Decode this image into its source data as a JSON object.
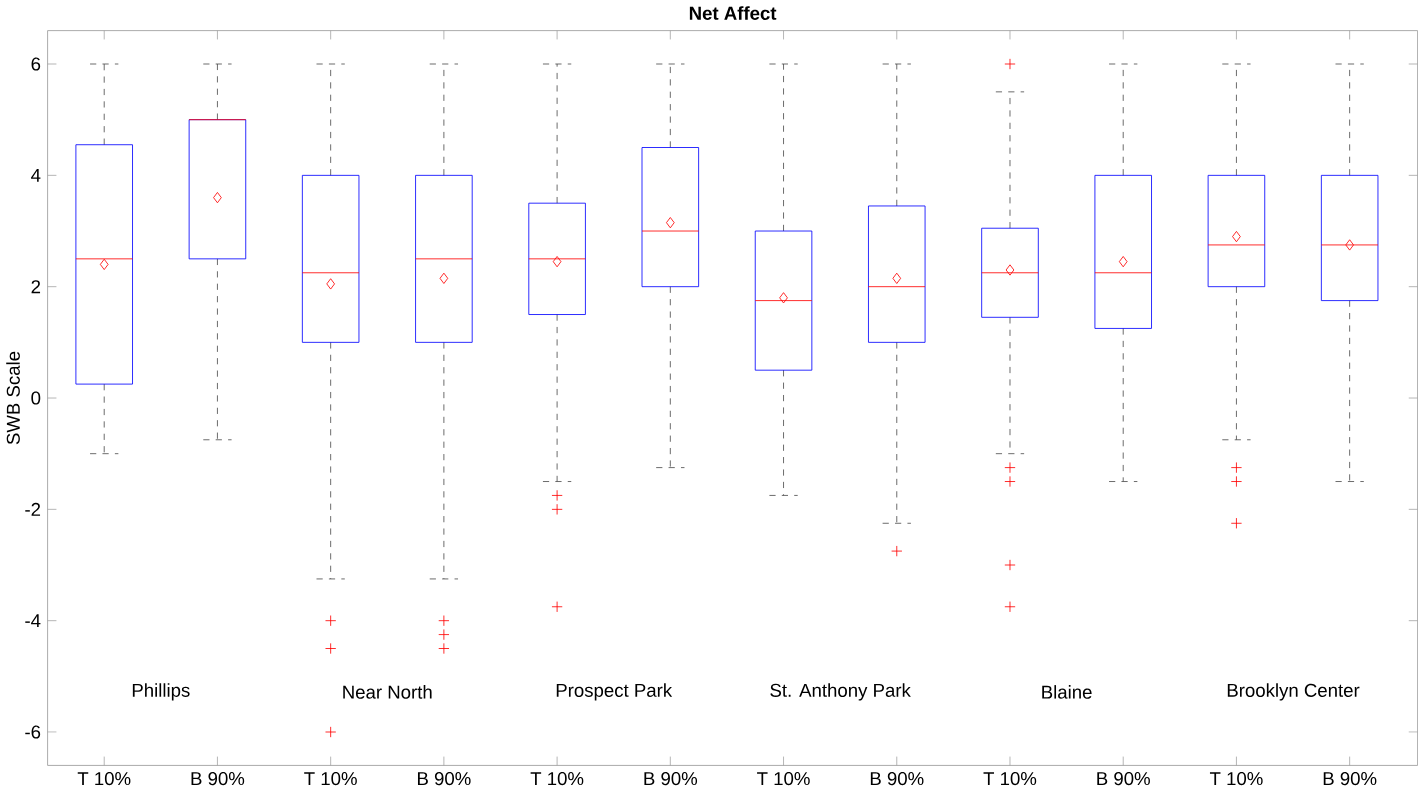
{
  "chart_data": {
    "type": "box",
    "title": "Net Affect",
    "ylabel": "SWB Scale",
    "categories": [
      "T 10%",
      "B 90%",
      "T 10%",
      "B 90%",
      "T 10%",
      "B 90%",
      "T 10%",
      "B 90%",
      "T 10%",
      "B 90%",
      "T 10%",
      "B 90%"
    ],
    "color": "#0000ff",
    "boxes": [
      {
        "low": -1,
        "q1": 0.25,
        "median": 2.5,
        "q3": 4.55,
        "high": 6,
        "mean": 2.4
      },
      {
        "low": -0.75,
        "q1": 2.5,
        "median": 5,
        "q3": 5,
        "high": 6,
        "mean": 3.6
      },
      {
        "low": -3.25,
        "q1": 1,
        "median": 2.25,
        "q3": 4,
        "high": 6,
        "mean": 2.05,
        "outliers": [
          -4,
          -4.5,
          -6
        ]
      },
      {
        "low": -3.25,
        "q1": 1,
        "median": 2.5,
        "q3": 4,
        "high": 6,
        "mean": 2.15,
        "outliers": [
          -4,
          -4.25,
          -4.5
        ]
      },
      {
        "low": -1.5,
        "q1": 1.5,
        "median": 2.5,
        "q3": 3.5,
        "high": 6,
        "mean": 2.45,
        "outliers": [
          -1.75,
          -2,
          -3.75
        ]
      },
      {
        "low": -1.25,
        "q1": 2,
        "median": 3,
        "q3": 4.5,
        "high": 6,
        "mean": 3.15
      },
      {
        "low": -1.75,
        "q1": 0.5,
        "median": 1.75,
        "q3": 3,
        "high": 6,
        "mean": 1.8
      },
      {
        "low": -2.25,
        "q1": 1,
        "median": 2,
        "q3": 3.45,
        "high": 6,
        "mean": 2.15,
        "outliers": [
          -2.75
        ]
      },
      {
        "low": -1,
        "q1": 1.45,
        "median": 2.25,
        "q3": 3.05,
        "high": 5.5,
        "mean": 2.3,
        "outliers": [
          6,
          -1.25,
          -1.5,
          -3,
          -3.75
        ]
      },
      {
        "low": -1.5,
        "q1": 1.25,
        "median": 2.25,
        "q3": 4,
        "high": 6,
        "mean": 2.45
      },
      {
        "low": -0.75,
        "q1": 2,
        "median": 2.75,
        "q3": 4,
        "high": 6,
        "mean": 2.9,
        "outliers": [
          -1.25,
          -1.5,
          -2.25
        ]
      },
      {
        "low": -1.5,
        "q1": 1.75,
        "median": 2.75,
        "q3": 4,
        "high": 6,
        "mean": 2.75
      }
    ],
    "ylim": [
      -6.6,
      6.6
    ],
    "yticks": [
      -6,
      -4,
      -2,
      0,
      2,
      4,
      6
    ],
    "grid": false,
    "annotations": [
      "Phillips",
      "Near North",
      "Prospect Park",
      "St. Anthony Park",
      "Blaine",
      "Brooklyn Center"
    ]
  }
}
